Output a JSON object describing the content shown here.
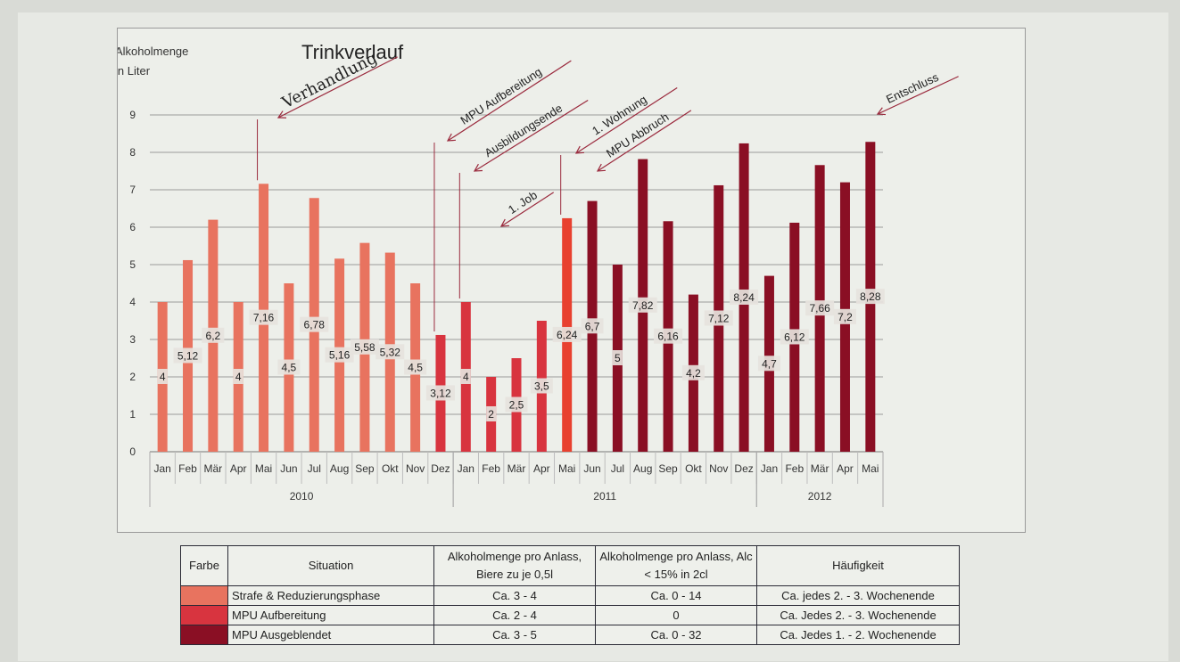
{
  "chart_data": {
    "type": "bar",
    "title": "Trinkverlauf",
    "ylabel": [
      "Alkoholmenge",
      "in Liter"
    ],
    "ylim": [
      0,
      9
    ],
    "yticks": [
      "0",
      "1",
      "2",
      "3",
      "4",
      "5",
      "6",
      "7",
      "8",
      "9"
    ],
    "grid": true,
    "categories": [
      "Jan",
      "Feb",
      "Mär",
      "Apr",
      "Mai",
      "Jun",
      "Jul",
      "Aug",
      "Sep",
      "Okt",
      "Nov",
      "Dez",
      "Jan",
      "Feb",
      "Mär",
      "Apr",
      "Mai",
      "Jun",
      "Jul",
      "Aug",
      "Sep",
      "Okt",
      "Nov",
      "Dez",
      "Jan",
      "Feb",
      "Mär",
      "Apr",
      "Mai"
    ],
    "years": [
      {
        "label": "2010",
        "start": 0,
        "end": 11
      },
      {
        "label": "2011",
        "start": 12,
        "end": 23
      },
      {
        "label": "2012",
        "start": 24,
        "end": 28
      }
    ],
    "values": [
      4,
      5.12,
      6.2,
      4,
      7.16,
      4.5,
      6.78,
      5.16,
      5.58,
      5.32,
      4.5,
      3.12,
      4,
      2,
      2.5,
      3.5,
      6.24,
      6.7,
      5,
      7.82,
      6.16,
      4.2,
      7.12,
      8.24,
      4.7,
      6.12,
      7.66,
      7.2,
      8.28
    ],
    "value_labels": [
      "4",
      "5,12",
      "6,2",
      "4",
      "7,16",
      "4,5",
      "6,78",
      "5,16",
      "5,58",
      "5,32",
      "4,5",
      "3,12",
      "4",
      "2",
      "2,5",
      "3,5",
      "6,24",
      "6,7",
      "5",
      "7,82",
      "6,16",
      "4,2",
      "7,12",
      "8,24",
      "4,7",
      "6,12",
      "7,66",
      "7,2",
      "8,28"
    ],
    "bar_colors": [
      "#e8735f",
      "#e8735f",
      "#e8735f",
      "#e8735f",
      "#e8735f",
      "#e8735f",
      "#e8735f",
      "#e8735f",
      "#e8735f",
      "#e8735f",
      "#e8735f",
      "#d8343f",
      "#d8343f",
      "#d8343f",
      "#d8343f",
      "#d8343f",
      "#e8402f",
      "#8a0f24",
      "#8a0f24",
      "#8a0f24",
      "#8a0f24",
      "#8a0f24",
      "#8a0f24",
      "#8a0f24",
      "#8a0f24",
      "#8a0f24",
      "#8a0f24",
      "#8a0f24",
      "#8a0f24"
    ],
    "annotations": [
      {
        "text": "Verhandlung",
        "bar": 4,
        "handwritten": true
      },
      {
        "text": "MPU Aufbereitung",
        "bar": 11
      },
      {
        "text": "Ausbildungsende",
        "bar": 12
      },
      {
        "text": "1. Job",
        "bar": 13
      },
      {
        "text": "1. Wohnung",
        "bar": 16
      },
      {
        "text": "MPU Abbruch",
        "bar": 17
      },
      {
        "text": "Entschluss",
        "bar": 28
      }
    ]
  },
  "legend_table": {
    "headers": [
      "Farbe",
      "Situation",
      "Alkoholmenge pro Anlass, Biere zu je 0,5l",
      "Alkoholmenge pro Anlass, Alc < 15% in 2cl",
      "Häufigkeit"
    ],
    "rows": [
      {
        "color": "#e8735f",
        "situation": "Strafe & Reduzierungsphase",
        "bier": "Ca. 3 - 4",
        "alc": "Ca. 0 - 14",
        "haeufigkeit": "Ca. jedes 2. - 3. Wochenende"
      },
      {
        "color": "#d8343f",
        "situation": "MPU Aufbereitung",
        "bier": "Ca. 2 - 4",
        "alc": "0",
        "haeufigkeit": "Ca. Jedes 2. - 3. Wochenende"
      },
      {
        "color": "#8a0f24",
        "situation": "MPU Ausgeblendet",
        "bier": "Ca. 3 - 5",
        "alc": "Ca. 0 - 32",
        "haeufigkeit": "Ca. Jedes 1. - 2. Wochenende"
      }
    ]
  }
}
